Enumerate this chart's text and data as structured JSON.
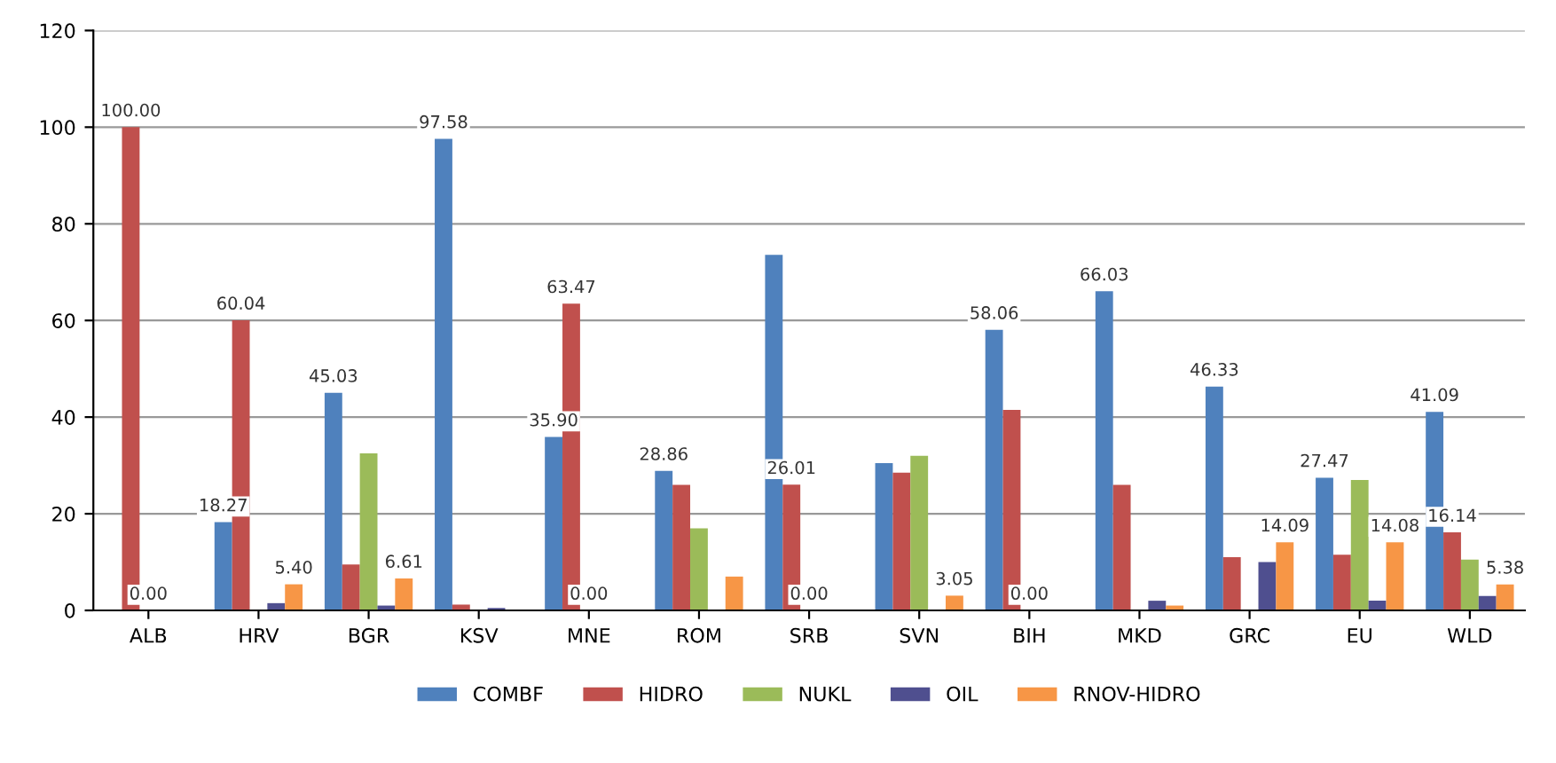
{
  "chart_data": {
    "type": "bar",
    "categories": [
      "ALB",
      "HRV",
      "BGR",
      "KSV",
      "MNE",
      "ROM",
      "SRB",
      "SVN",
      "BIH",
      "MKD",
      "GRC",
      "EU",
      "WLD"
    ],
    "series": [
      {
        "name": "COMBF",
        "color": "#4f81bd",
        "values": [
          0,
          18.27,
          45.03,
          97.58,
          35.9,
          28.86,
          73.6,
          30.5,
          58.06,
          66.03,
          46.33,
          27.47,
          41.09
        ],
        "value_labels": [
          null,
          "18.27",
          "45.03",
          "97.58",
          "35.90",
          "28.86",
          null,
          null,
          "58.06",
          "66.03",
          "46.33",
          "27.47",
          "41.09"
        ]
      },
      {
        "name": "HIDRO",
        "color": "#c0504d",
        "values": [
          100,
          60.04,
          9.5,
          1.2,
          63.47,
          26,
          26.01,
          28.5,
          41.5,
          26,
          11.0,
          11.5,
          16.14
        ],
        "value_labels": [
          "100.00",
          "60.04",
          null,
          null,
          "63.47",
          null,
          "26.01",
          null,
          null,
          null,
          null,
          null,
          "16.14"
        ]
      },
      {
        "name": "NUKL",
        "color": "#9bbb59",
        "values": [
          0,
          0,
          32.5,
          0,
          0,
          17,
          0,
          32,
          0,
          0,
          0,
          27.0,
          10.5
        ],
        "value_labels": [
          "0.00",
          null,
          null,
          null,
          "0.00",
          null,
          "0.00",
          null,
          "0.00",
          null,
          null,
          null,
          null
        ]
      },
      {
        "name": "OIL",
        "color": "#4f4f8f",
        "values": [
          0,
          1.5,
          1.0,
          0.5,
          0,
          null,
          0,
          0,
          null,
          2.0,
          10.0,
          2.0,
          3.0
        ]
      },
      {
        "name": "RNOV-HIDRO",
        "color": "#f79646",
        "values": [
          0,
          5.4,
          6.61,
          0,
          0,
          7,
          0,
          3.05,
          0,
          1.0,
          14.09,
          14.08,
          5.38
        ],
        "value_labels": [
          null,
          "5.40",
          "6.61",
          null,
          null,
          null,
          null,
          "3.05",
          null,
          null,
          "14.09",
          "14.08",
          "5.38"
        ]
      }
    ],
    "ylim": [
      0,
      120
    ],
    "yticks": [
      0,
      20,
      40,
      60,
      80,
      100,
      120
    ],
    "grid": "y",
    "legend": "bottom"
  }
}
